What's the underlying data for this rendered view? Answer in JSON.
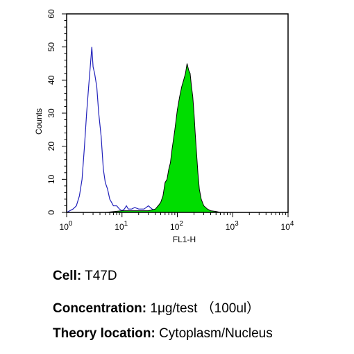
{
  "chart_data": {
    "type": "area",
    "title": "",
    "xlabel": "FL1-H",
    "ylabel": "Counts",
    "xscale": "log",
    "xlim": [
      1,
      10000
    ],
    "ylim": [
      0,
      60
    ],
    "y_ticks": [
      0,
      10,
      20,
      30,
      40,
      50,
      60
    ],
    "y_tick_labels": [
      "0",
      "10",
      "20",
      "30",
      "40",
      "50",
      "60"
    ],
    "x_ticks": [
      1,
      10,
      100,
      1000,
      10000
    ],
    "x_tick_labels": [
      {
        "base": "10",
        "exp": "0"
      },
      {
        "base": "10",
        "exp": "1"
      },
      {
        "base": "10",
        "exp": "2"
      },
      {
        "base": "10",
        "exp": "3"
      },
      {
        "base": "10",
        "exp": "4"
      }
    ],
    "grid": false,
    "series": [
      {
        "style": "line",
        "color": "#2222bb",
        "points": [
          [
            1,
            0
          ],
          [
            1.3,
            1
          ],
          [
            1.5,
            2
          ],
          [
            1.7,
            5
          ],
          [
            1.9,
            10
          ],
          [
            2.1,
            20
          ],
          [
            2.3,
            30
          ],
          [
            2.5,
            38
          ],
          [
            2.7,
            45
          ],
          [
            2.85,
            50
          ],
          [
            3.0,
            44
          ],
          [
            3.2,
            42
          ],
          [
            3.5,
            38
          ],
          [
            3.8,
            30
          ],
          [
            4.2,
            23
          ],
          [
            4.6,
            13
          ],
          [
            5.0,
            9
          ],
          [
            5.5,
            7
          ],
          [
            6,
            4
          ],
          [
            6.5,
            3
          ],
          [
            7,
            2
          ],
          [
            8,
            2
          ],
          [
            9,
            1
          ],
          [
            10,
            0.5
          ],
          [
            11,
            1
          ],
          [
            12,
            2
          ],
          [
            13,
            1
          ],
          [
            15,
            1
          ],
          [
            17,
            1.5
          ],
          [
            20,
            1
          ],
          [
            25,
            1
          ],
          [
            30,
            2
          ],
          [
            35,
            1
          ],
          [
            40,
            0.5
          ],
          [
            50,
            0
          ]
        ]
      },
      {
        "style": "filled",
        "color": "#00dd00",
        "points": [
          [
            5,
            0
          ],
          [
            10,
            0.5
          ],
          [
            20,
            0.5
          ],
          [
            30,
            0.5
          ],
          [
            40,
            1
          ],
          [
            45,
            2
          ],
          [
            50,
            3
          ],
          [
            55,
            5
          ],
          [
            60,
            9
          ],
          [
            65,
            10
          ],
          [
            70,
            13
          ],
          [
            75,
            15
          ],
          [
            80,
            19
          ],
          [
            85,
            22
          ],
          [
            90,
            25
          ],
          [
            95,
            28
          ],
          [
            100,
            31
          ],
          [
            110,
            35
          ],
          [
            120,
            38
          ],
          [
            130,
            40
          ],
          [
            140,
            42
          ],
          [
            150,
            45
          ],
          [
            160,
            43
          ],
          [
            170,
            42
          ],
          [
            180,
            38
          ],
          [
            190,
            35
          ],
          [
            200,
            30
          ],
          [
            210,
            24
          ],
          [
            220,
            19
          ],
          [
            235,
            12
          ],
          [
            250,
            7
          ],
          [
            270,
            4
          ],
          [
            300,
            2
          ],
          [
            350,
            1
          ],
          [
            400,
            0.5
          ],
          [
            500,
            0.3
          ],
          [
            600,
            0
          ]
        ]
      }
    ]
  },
  "info": {
    "cell_label": "Cell:",
    "cell_value": "T47D",
    "concentration_label": "Concentration:",
    "concentration_value": "1μg/test （100ul）",
    "theory_label": "Theory location:",
    "theory_value": "Cytoplasm/Nucleus"
  }
}
